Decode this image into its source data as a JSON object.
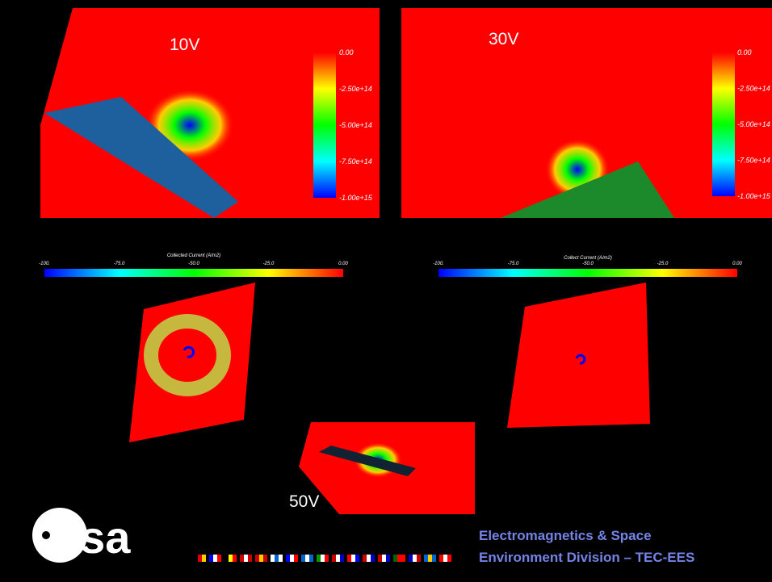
{
  "panels": [
    {
      "label": "10V",
      "colorbar": {
        "ticks": [
          "0.00",
          "-2.50e+14",
          "-5.00e+14",
          "-7.50e+14",
          "-1.00e+15"
        ]
      }
    },
    {
      "label": "30V",
      "colorbar": {
        "ticks": [
          "0.00",
          "-2.50e+14",
          "-5.00e+14",
          "-7.50e+14",
          "-1.00e+15"
        ]
      }
    },
    {
      "label": "50V"
    }
  ],
  "current_maps": [
    {
      "title": "Collected Current (A/m2)",
      "ticks": [
        "-100.",
        "-75.0",
        "-50.0",
        "-25.0",
        "0.00"
      ]
    },
    {
      "title": "Collect Current (A/m2)",
      "ticks": [
        "-100.",
        "-75.0",
        "-50.0",
        "-25.0",
        "0.00"
      ]
    }
  ],
  "logo": "esa",
  "footer": {
    "lines": [
      "Electromagnetics & Space",
      "Environment Division – TEC-EES"
    ]
  }
}
